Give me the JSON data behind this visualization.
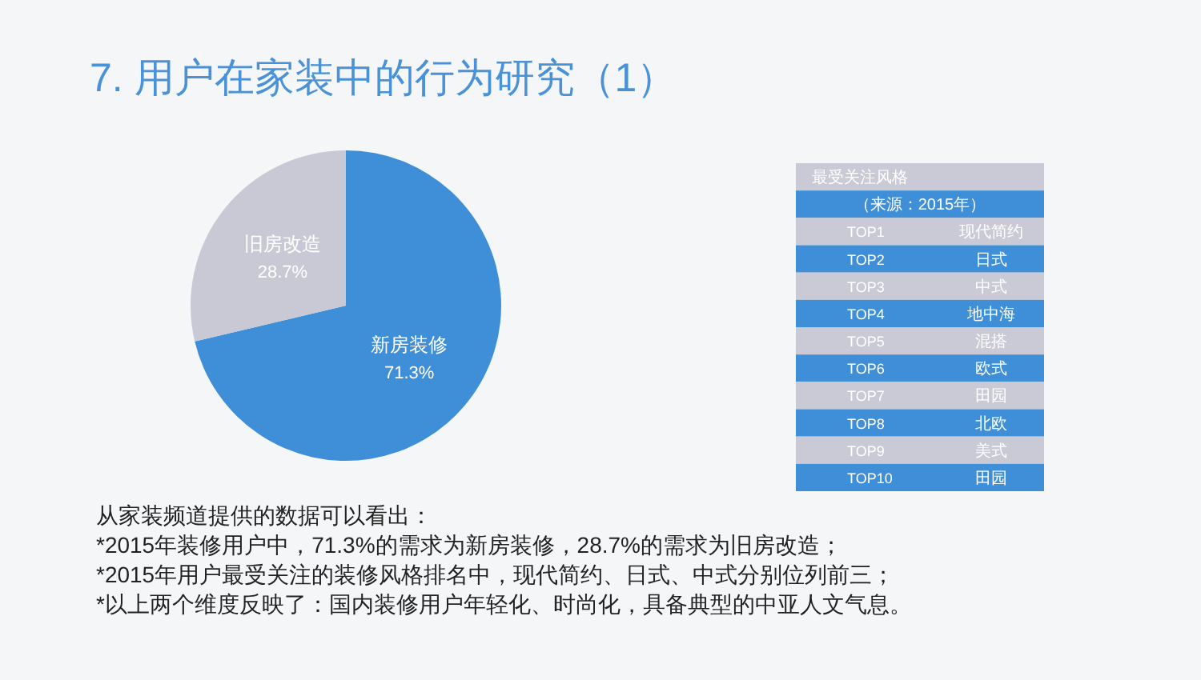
{
  "chart_data": [
    {
      "type": "pie",
      "title": "7. 用户在家装中的行为研究（1）",
      "categories": [
        "新房装修",
        "旧房改造"
      ],
      "values": [
        71.3,
        28.7
      ],
      "colors": [
        "#3f8fd8",
        "#c9c9d5"
      ],
      "value_labels": [
        "71.3%",
        "28.7%"
      ],
      "annotations": [
        "从家装频道提供的数据可以看出：",
        "*2015年装修用户中，71.3%的需求为新房装修，28.7%的需求为旧房改造；",
        "*2015年用户最受关注的装修风格排名中，现代简约、日式、中式分别位列前三；",
        "*以上两个维度反映了：国内装修用户年轻化、时尚化，具备典型的中亚人文气息。"
      ]
    },
    {
      "type": "other",
      "title": "最受关注风格",
      "subtitle": "（来源：2015年）",
      "colors": [
        "#c9cad6",
        "#3f8fd8"
      ],
      "annotations": [
        "TOP1",
        "现代简约",
        "TOP2",
        "日式",
        "TOP3",
        "中式",
        "TOP4",
        "地中海",
        "TOP5",
        "混搭",
        "TOP6",
        "欧式",
        "TOP7",
        "田园",
        "TOP8",
        "北欧",
        "TOP9",
        "美式",
        "TOP10",
        "田园"
      ]
    }
  ]
}
